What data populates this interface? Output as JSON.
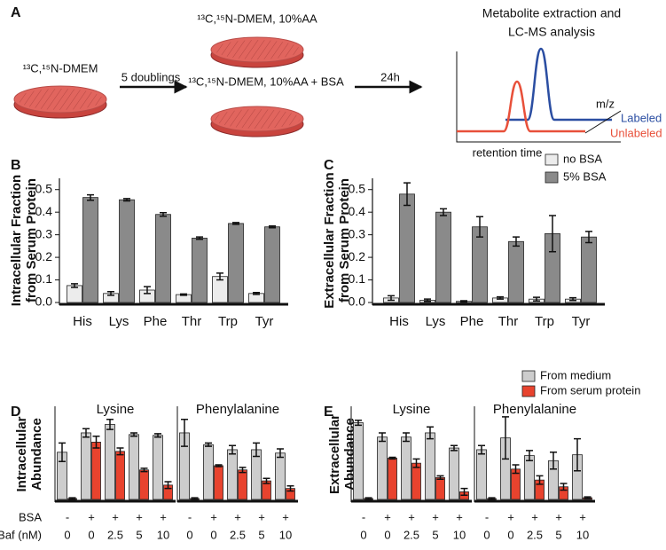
{
  "diagram": {
    "label": "A",
    "start_medium": "¹³C,¹⁵N-DMEM",
    "step1": "5 doublings",
    "condition1": "¹³C,¹⁵N-DMEM, 10%AA",
    "condition2": "¹³C,¹⁵N-DMEM, 10%AA + BSA",
    "step2": "24h",
    "analysis": [
      "Metabolite extraction and",
      "LC-MS analysis"
    ],
    "y_axis": "m/z",
    "x_axis": "retention time",
    "traces": [
      {
        "name": "Labeled",
        "color": "#2b4ea2"
      },
      {
        "name": "Unlabeled",
        "color": "#e8503a"
      }
    ]
  },
  "chart_data": [
    {
      "type": "bar",
      "categories": [
        "His",
        "Lys",
        "Phe",
        "Thr",
        "Trp",
        "Tyr"
      ],
      "series": [
        {
          "name": "no BSA",
          "color": "#ececec"
        },
        {
          "name": "5% BSA",
          "color": "#8a8a8a"
        }
      ],
      "legend": "upper right",
      "ylim": [
        0,
        0.55
      ],
      "yticks": [
        {
          "value": 0,
          "label": "0.0"
        },
        0.1,
        0.2,
        0.3,
        0.4,
        0.5
      ],
      "panels": [
        {
          "label": "B",
          "ylabel": [
            "Intracellular Fraction",
            "from Serum Protein"
          ],
          "series": [
            {
              "values": [
                0.075,
                0.04,
                0.055,
                0.035,
                0.115,
                0.04
              ],
              "errors": [
                0.008,
                0.008,
                0.015,
                0.003,
                0.015,
                0.004
              ]
            },
            {
              "values": [
                0.465,
                0.455,
                0.39,
                0.285,
                0.35,
                0.335
              ],
              "errors": [
                0.012,
                0.005,
                0.008,
                0.005,
                0.004,
                0.004
              ]
            }
          ]
        },
        {
          "label": "C",
          "ylabel": [
            "Extracellular Fraction",
            "from Serum Protein"
          ],
          "series": [
            {
              "values": [
                0.02,
                0.01,
                0.005,
                0.02,
                0.015,
                0.015
              ],
              "errors": [
                0.01,
                0.005,
                0.003,
                0.005,
                0.008,
                0.006
              ]
            },
            {
              "values": [
                0.48,
                0.4,
                0.335,
                0.27,
                0.305,
                0.29
              ],
              "errors": [
                0.05,
                0.015,
                0.045,
                0.02,
                0.08,
                0.025
              ]
            }
          ]
        }
      ]
    },
    {
      "type": "bar",
      "series": [
        {
          "name": "From medium",
          "color": "#cdcdcd"
        },
        {
          "name": "From serum protein",
          "color": "#e8432e"
        }
      ],
      "legend": "upper right",
      "ylim": [
        0,
        1
      ],
      "row_labels": [
        "BSA",
        "Baf (nM)"
      ],
      "category_rows": [
        [
          "-",
          "+",
          "+",
          "+",
          "+"
        ],
        [
          "0",
          "0",
          "2.5",
          "5",
          "10"
        ]
      ],
      "panels": [
        {
          "label": "D",
          "ylabel": [
            "Intracellular",
            "Abundance"
          ],
          "subplots": [
            {
              "title": "Lysine",
              "series": [
                {
                  "values": [
                    0.56,
                    0.79,
                    0.89,
                    0.77,
                    0.76
                  ],
                  "errors": [
                    0.11,
                    0.05,
                    0.06,
                    0.02,
                    0.02
                  ]
                },
                {
                  "values": [
                    0.01,
                    0.68,
                    0.57,
                    0.35,
                    0.17
                  ],
                  "errors": [
                    0.01,
                    0.07,
                    0.04,
                    0.02,
                    0.04
                  ]
                }
              ]
            },
            {
              "title": "Phenylalanine",
              "series": [
                {
                  "values": [
                    0.79,
                    0.65,
                    0.59,
                    0.59,
                    0.55
                  ],
                  "errors": [
                    0.16,
                    0.02,
                    0.05,
                    0.08,
                    0.05
                  ]
                },
                {
                  "values": [
                    0.01,
                    0.4,
                    0.35,
                    0.22,
                    0.13
                  ],
                  "errors": [
                    0.01,
                    0.01,
                    0.03,
                    0.03,
                    0.03
                  ]
                }
              ]
            }
          ]
        },
        {
          "label": "E",
          "ylabel": [
            "Extracellular",
            "Abundance"
          ],
          "subplots": [
            {
              "title": "Lysine",
              "series": [
                {
                  "values": [
                    0.91,
                    0.74,
                    0.74,
                    0.79,
                    0.61
                  ],
                  "errors": [
                    0.03,
                    0.05,
                    0.05,
                    0.07,
                    0.03
                  ]
                },
                {
                  "values": [
                    0.01,
                    0.49,
                    0.43,
                    0.26,
                    0.09
                  ],
                  "errors": [
                    0.01,
                    0.01,
                    0.05,
                    0.02,
                    0.04
                  ]
                }
              ]
            },
            {
              "title": "Phenylalanine",
              "series": [
                {
                  "values": [
                    0.59,
                    0.73,
                    0.52,
                    0.46,
                    0.53
                  ],
                  "errors": [
                    0.05,
                    0.25,
                    0.06,
                    0.1,
                    0.19
                  ]
                },
                {
                  "values": [
                    0.01,
                    0.36,
                    0.23,
                    0.15,
                    0.02
                  ],
                  "errors": [
                    0.01,
                    0.05,
                    0.05,
                    0.04,
                    0.01
                  ]
                }
              ]
            }
          ]
        }
      ]
    }
  ]
}
